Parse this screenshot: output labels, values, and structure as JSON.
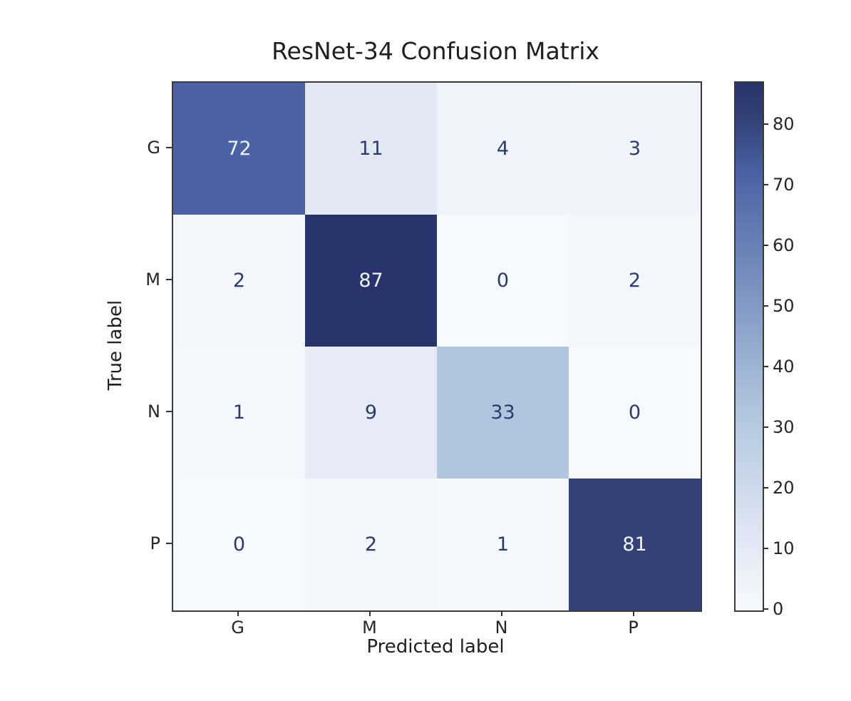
{
  "chart_data": {
    "type": "heatmap",
    "title": "ResNet-34 Confusion Matrix",
    "xlabel": "Predicted label",
    "ylabel": "True label",
    "x_categories": [
      "G",
      "M",
      "N",
      "P"
    ],
    "y_categories": [
      "G",
      "M",
      "N",
      "P"
    ],
    "matrix": [
      [
        72,
        11,
        4,
        3
      ],
      [
        2,
        87,
        0,
        2
      ],
      [
        1,
        9,
        33,
        0
      ],
      [
        0,
        2,
        1,
        81
      ]
    ],
    "vmin": 0,
    "vmax": 87,
    "colorbar_ticks": [
      0,
      10,
      20,
      30,
      40,
      50,
      60,
      70,
      80
    ],
    "colormap_name": "Blues",
    "colormap_anchors": [
      {
        "v": 0,
        "c": "#f7fafd"
      },
      {
        "v": 11,
        "c": "#e2e8f4"
      },
      {
        "v": 33,
        "c": "#b0c6de"
      },
      {
        "v": 72,
        "c": "#4a62a5"
      },
      {
        "v": 81,
        "c": "#334177"
      },
      {
        "v": 87,
        "c": "#28336b"
      }
    ],
    "annotation_threshold": 43.5,
    "annotation_color_on_dark": "#eef2fa",
    "annotation_color_on_light": "#2d3a6e",
    "spine_color": "#3a3a3a",
    "legend_position": "right-colorbar",
    "grid": false
  }
}
